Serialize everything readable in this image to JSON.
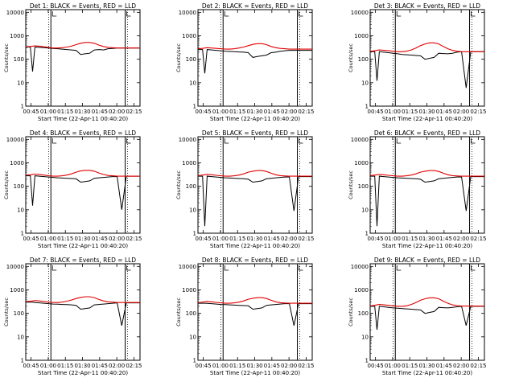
{
  "colors": {
    "events": "#000000",
    "lld": "#e00000",
    "axis": "#000000",
    "background": "#ffffff"
  },
  "shared": {
    "xlabel": "Start Time (22-Apr-11 00:40:20)",
    "ylabel": "Counts/sec",
    "x_ticks": [
      "00:45",
      "01:00",
      "01:15",
      "01:30",
      "01:45",
      "02:00",
      "02:15"
    ],
    "x_tick_minutes": [
      4.67,
      19.67,
      34.67,
      49.67,
      64.67,
      79.67,
      94.67
    ],
    "x_range_minutes": [
      0,
      100
    ],
    "y_ticks": [
      "1",
      "10",
      "100",
      "1000",
      "10000"
    ],
    "y_scale": "log",
    "y_range": [
      1,
      13000
    ],
    "event_lines_minutes": [
      22,
      87
    ],
    "dotted_lines_minutes": [
      20,
      89
    ]
  },
  "chart_data": [
    {
      "type": "line",
      "title": "Det 1: BLACK = Events, RED = LLD",
      "x": [
        0,
        2,
        4,
        6,
        8,
        12,
        16,
        20,
        24,
        28,
        32,
        36,
        40,
        44,
        48,
        52,
        56,
        60,
        64,
        68,
        72,
        76,
        80,
        84,
        88,
        92,
        96,
        100
      ],
      "series": [
        {
          "name": "Events",
          "values": [
            330,
            330,
            330,
            30,
            330,
            320,
            310,
            300,
            290,
            280,
            270,
            260,
            250,
            240,
            160,
            170,
            180,
            250,
            260,
            250,
            280,
            290,
            300,
            300,
            300,
            300,
            300,
            300
          ]
        },
        {
          "name": "LLD",
          "values": [
            340,
            345,
            350,
            360,
            370,
            360,
            340,
            320,
            300,
            300,
            310,
            330,
            360,
            420,
            480,
            520,
            520,
            480,
            400,
            350,
            320,
            310,
            300,
            300,
            300,
            300,
            300,
            300
          ]
        }
      ]
    },
    {
      "type": "line",
      "title": "Det 2: BLACK = Events, RED = LLD",
      "x": [
        0,
        2,
        4,
        6,
        8,
        12,
        16,
        20,
        24,
        28,
        32,
        36,
        40,
        44,
        48,
        52,
        56,
        60,
        64,
        68,
        72,
        76,
        80,
        84,
        88,
        92,
        96,
        100
      ],
      "series": [
        {
          "name": "Events",
          "values": [
            260,
            260,
            260,
            25,
            260,
            250,
            240,
            230,
            220,
            215,
            210,
            205,
            200,
            190,
            120,
            130,
            140,
            150,
            190,
            200,
            220,
            230,
            240,
            240,
            240,
            240,
            240,
            240
          ]
        },
        {
          "name": "LLD",
          "values": [
            280,
            285,
            290,
            300,
            310,
            300,
            290,
            280,
            270,
            270,
            280,
            300,
            330,
            380,
            430,
            460,
            460,
            420,
            350,
            310,
            290,
            280,
            270,
            270,
            270,
            270,
            270,
            270
          ]
        }
      ]
    },
    {
      "type": "line",
      "title": "Det 3: BLACK = Events, RED = LLD",
      "x": [
        0,
        2,
        4,
        6,
        8,
        12,
        16,
        20,
        24,
        28,
        32,
        36,
        40,
        44,
        48,
        52,
        56,
        60,
        64,
        68,
        72,
        76,
        80,
        84,
        88,
        92,
        96,
        100
      ],
      "series": [
        {
          "name": "Events",
          "values": [
            210,
            210,
            210,
            12,
            210,
            200,
            190,
            180,
            170,
            160,
            155,
            150,
            145,
            140,
            100,
            110,
            120,
            180,
            175,
            170,
            180,
            200,
            210,
            6,
            210,
            210,
            210,
            210
          ]
        },
        {
          "name": "LLD",
          "values": [
            220,
            225,
            230,
            240,
            250,
            240,
            230,
            220,
            210,
            210,
            220,
            250,
            300,
            380,
            450,
            500,
            500,
            450,
            350,
            280,
            240,
            220,
            210,
            210,
            210,
            210,
            210,
            210
          ]
        }
      ]
    },
    {
      "type": "line",
      "title": "Det 4: BLACK = Events, RED = LLD",
      "x": [
        0,
        2,
        4,
        6,
        8,
        12,
        16,
        20,
        24,
        28,
        32,
        36,
        40,
        44,
        48,
        52,
        56,
        60,
        64,
        68,
        72,
        76,
        80,
        84,
        88,
        92,
        96,
        100
      ],
      "series": [
        {
          "name": "Events",
          "values": [
            280,
            280,
            280,
            15,
            280,
            270,
            260,
            250,
            240,
            230,
            225,
            220,
            215,
            210,
            150,
            160,
            170,
            220,
            230,
            240,
            250,
            260,
            260,
            10,
            270,
            270,
            270,
            270
          ]
        },
        {
          "name": "LLD",
          "values": [
            300,
            305,
            310,
            320,
            330,
            320,
            300,
            280,
            270,
            270,
            280,
            300,
            340,
            400,
            450,
            480,
            480,
            440,
            370,
            320,
            290,
            280,
            270,
            270,
            270,
            270,
            270,
            270
          ]
        }
      ]
    },
    {
      "type": "line",
      "title": "Det 5: BLACK = Events, RED = LLD",
      "x": [
        0,
        2,
        4,
        6,
        8,
        12,
        16,
        20,
        24,
        28,
        32,
        36,
        40,
        44,
        48,
        52,
        56,
        60,
        64,
        68,
        72,
        76,
        80,
        84,
        88,
        92,
        96,
        100
      ],
      "series": [
        {
          "name": "Events",
          "values": [
            270,
            270,
            270,
            2,
            270,
            260,
            250,
            240,
            230,
            225,
            220,
            215,
            210,
            200,
            150,
            160,
            170,
            210,
            220,
            230,
            240,
            250,
            250,
            9,
            260,
            260,
            260,
            260
          ]
        },
        {
          "name": "LLD",
          "values": [
            290,
            295,
            300,
            310,
            320,
            310,
            295,
            280,
            270,
            270,
            280,
            300,
            340,
            400,
            440,
            470,
            470,
            430,
            360,
            310,
            285,
            275,
            270,
            270,
            270,
            270,
            270,
            270
          ]
        }
      ]
    },
    {
      "type": "line",
      "title": "Det 6: BLACK = Events, RED = LLD",
      "x": [
        0,
        2,
        4,
        6,
        8,
        12,
        16,
        20,
        24,
        28,
        32,
        36,
        40,
        44,
        48,
        52,
        56,
        60,
        64,
        68,
        72,
        76,
        80,
        84,
        88,
        92,
        96,
        100
      ],
      "series": [
        {
          "name": "Events",
          "values": [
            270,
            270,
            270,
            2,
            270,
            260,
            250,
            240,
            230,
            225,
            220,
            215,
            210,
            200,
            150,
            160,
            170,
            210,
            220,
            230,
            240,
            250,
            250,
            9,
            260,
            260,
            260,
            260
          ]
        },
        {
          "name": "LLD",
          "values": [
            290,
            295,
            300,
            310,
            320,
            310,
            295,
            280,
            270,
            270,
            280,
            300,
            340,
            400,
            440,
            470,
            470,
            430,
            360,
            310,
            285,
            275,
            270,
            270,
            270,
            270,
            270,
            270
          ]
        }
      ]
    },
    {
      "type": "line",
      "title": "Det 7: BLACK = Events, RED = LLD",
      "x": [
        0,
        2,
        4,
        6,
        8,
        12,
        16,
        20,
        24,
        28,
        32,
        36,
        40,
        44,
        48,
        52,
        56,
        60,
        64,
        68,
        72,
        76,
        80,
        84,
        88,
        92,
        96,
        100
      ],
      "series": [
        {
          "name": "Events",
          "values": [
            300,
            300,
            300,
            300,
            290,
            280,
            270,
            260,
            250,
            245,
            240,
            235,
            230,
            220,
            150,
            160,
            170,
            230,
            240,
            250,
            260,
            270,
            280,
            30,
            280,
            280,
            280,
            280
          ]
        },
        {
          "name": "LLD",
          "values": [
            320,
            325,
            330,
            340,
            350,
            340,
            320,
            300,
            290,
            290,
            300,
            330,
            370,
            430,
            480,
            510,
            510,
            470,
            390,
            340,
            310,
            300,
            290,
            290,
            290,
            290,
            290,
            290
          ]
        }
      ]
    },
    {
      "type": "line",
      "title": "Det 8: BLACK = Events, RED = LLD",
      "x": [
        0,
        2,
        4,
        6,
        8,
        12,
        16,
        20,
        24,
        28,
        32,
        36,
        40,
        44,
        48,
        52,
        56,
        60,
        64,
        68,
        72,
        76,
        80,
        84,
        88,
        92,
        96,
        100
      ],
      "series": [
        {
          "name": "Events",
          "values": [
            270,
            270,
            270,
            270,
            265,
            260,
            250,
            240,
            235,
            230,
            225,
            220,
            215,
            210,
            150,
            160,
            170,
            220,
            230,
            240,
            250,
            260,
            260,
            30,
            260,
            260,
            260,
            260
          ]
        },
        {
          "name": "LLD",
          "values": [
            290,
            295,
            300,
            310,
            320,
            310,
            295,
            280,
            270,
            270,
            280,
            300,
            340,
            400,
            440,
            470,
            470,
            430,
            360,
            310,
            285,
            275,
            270,
            270,
            270,
            270,
            270,
            270
          ]
        }
      ]
    },
    {
      "type": "line",
      "title": "Det 9: BLACK = Events, RED = LLD",
      "x": [
        0,
        2,
        4,
        6,
        8,
        12,
        16,
        20,
        24,
        28,
        32,
        36,
        40,
        44,
        48,
        52,
        56,
        60,
        64,
        68,
        72,
        76,
        80,
        84,
        88,
        92,
        96,
        100
      ],
      "series": [
        {
          "name": "Events",
          "values": [
            200,
            200,
            200,
            20,
            200,
            190,
            180,
            170,
            165,
            160,
            155,
            150,
            145,
            140,
            100,
            110,
            120,
            180,
            175,
            170,
            180,
            190,
            200,
            30,
            200,
            200,
            200,
            200
          ]
        },
        {
          "name": "LLD",
          "values": [
            210,
            215,
            220,
            230,
            240,
            230,
            220,
            210,
            200,
            200,
            210,
            240,
            290,
            360,
            420,
            460,
            460,
            420,
            330,
            270,
            230,
            215,
            205,
            205,
            205,
            205,
            205,
            205
          ]
        }
      ]
    }
  ]
}
